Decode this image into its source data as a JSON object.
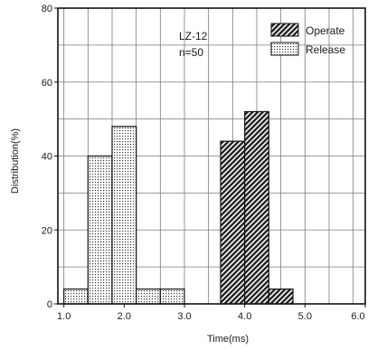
{
  "chart_data": {
    "type": "bar",
    "title": "",
    "xlabel": "Time(ms)",
    "ylabel": "Distribution(%)",
    "xlim": [
      0.9,
      6.0
    ],
    "ylim": [
      0,
      80
    ],
    "x_ticks": [
      1.0,
      2.0,
      3.0,
      4.0,
      5.0,
      6.0
    ],
    "x_tick_labels": [
      "1.0",
      "2.0",
      "3.0",
      "4.0",
      "5.0",
      "6.0"
    ],
    "y_ticks": [
      0,
      20,
      40,
      60,
      80
    ],
    "y_tick_labels": [
      "0",
      "20",
      "40",
      "60",
      "80"
    ],
    "bin_width": 0.4,
    "grid": true,
    "legend_position": "top-right",
    "annotations": [
      "LZ-12",
      "n=50"
    ],
    "series": [
      {
        "name": "Operate",
        "pattern": "diagonal-hatch",
        "bins": [
          {
            "start": 3.6,
            "end": 4.0,
            "value": 44
          },
          {
            "start": 4.0,
            "end": 4.4,
            "value": 52
          },
          {
            "start": 4.4,
            "end": 4.8,
            "value": 4
          }
        ]
      },
      {
        "name": "Release",
        "pattern": "dotted",
        "bins": [
          {
            "start": 1.0,
            "end": 1.4,
            "value": 4
          },
          {
            "start": 1.4,
            "end": 1.8,
            "value": 40
          },
          {
            "start": 1.8,
            "end": 2.2,
            "value": 48
          },
          {
            "start": 2.2,
            "end": 2.6,
            "value": 4
          },
          {
            "start": 2.6,
            "end": 3.0,
            "value": 4
          }
        ]
      }
    ]
  }
}
